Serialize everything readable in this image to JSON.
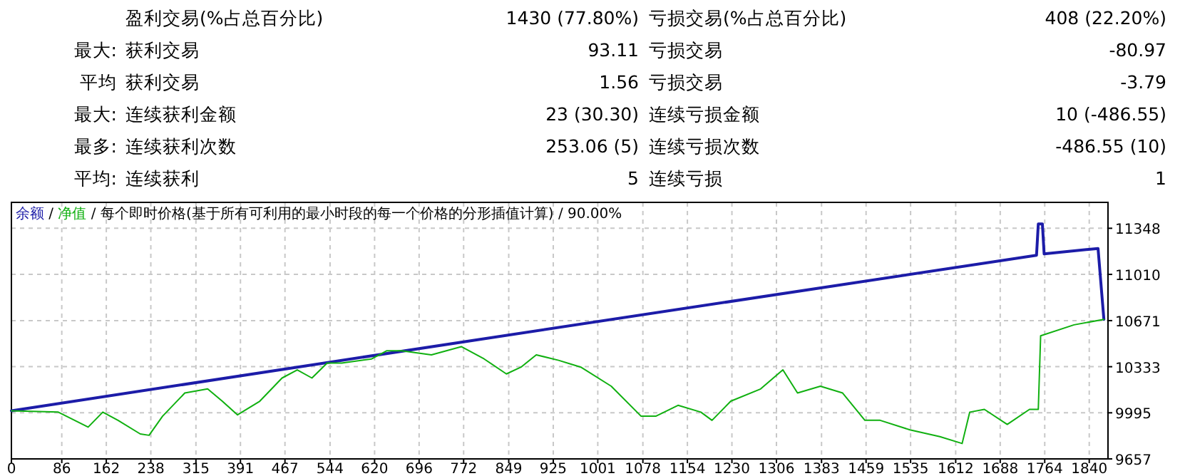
{
  "chart_data": [
    {
      "type": "other",
      "annotations": [
        "盈利交易(%占总百分比)",
        "1430 (77.80%)",
        "亏损交易(%占总百分比)",
        "408 (22.20%)",
        "最大:",
        "获利交易",
        "93.11",
        "亏损交易",
        "-80.97",
        "平均",
        "获利交易",
        "1.56",
        "亏损交易",
        "-3.79",
        "最大:",
        "连续获利金额",
        "23 (30.30)",
        "连续亏损金额",
        "10 (-486.55)",
        "最多:",
        "连续获利次数",
        "253.06 (5)",
        "连续亏损次数",
        "-486.55 (10)",
        "平均:",
        "连续获利",
        "5",
        "连续亏损",
        "1"
      ]
    },
    {
      "type": "line",
      "legend": "top left",
      "grid": true,
      "annotations": [
        " / ",
        " / 每个即时价格(基于所有可利用的最小时段的每一个价格的分形插值计算) / 90.00%"
      ],
      "xlim": [
        0,
        1872
      ],
      "xticks": [
        0,
        86,
        162,
        238,
        315,
        391,
        467,
        544,
        620,
        696,
        772,
        849,
        925,
        1001,
        1078,
        1154,
        1230,
        1306,
        1383,
        1459,
        1535,
        1612,
        1688,
        1764,
        1840
      ],
      "ylim": [
        9657,
        11538
      ],
      "yticks": [
        9657,
        9995,
        10333,
        10671,
        11010,
        11348
      ],
      "series": [
        {
          "name": "余额",
          "color": "#1c1ca8",
          "x": [
            0,
            794,
            1750,
            1753,
            1760,
            1763,
            1855,
            1865
          ],
          "values": [
            10010,
            10530,
            11150,
            11380,
            11380,
            11160,
            11200,
            10680
          ]
        },
        {
          "name": "净值",
          "color": "#10b010",
          "x": [
            0,
            80,
            131,
            156,
            182,
            220,
            235,
            258,
            296,
            335,
            360,
            386,
            424,
            462,
            488,
            513,
            539,
            564,
            615,
            641,
            666,
            717,
            768,
            807,
            845,
            870,
            896,
            934,
            972,
            1024,
            1075,
            1100,
            1138,
            1177,
            1196,
            1228,
            1279,
            1317,
            1342,
            1381,
            1419,
            1457,
            1483,
            1534,
            1585,
            1623,
            1636,
            1661,
            1700,
            1738,
            1753,
            1757,
            1814,
            1865
          ],
          "values": [
            10010,
            10000,
            9890,
            10000,
            9940,
            9840,
            9830,
            9970,
            10140,
            10170,
            10080,
            9980,
            10080,
            10250,
            10310,
            10250,
            10360,
            10360,
            10390,
            10450,
            10450,
            10420,
            10480,
            10390,
            10280,
            10330,
            10420,
            10380,
            10330,
            10190,
            9970,
            9970,
            10050,
            10000,
            9940,
            10080,
            10170,
            10310,
            10140,
            10190,
            10140,
            9940,
            9940,
            9870,
            9820,
            9770,
            10000,
            10020,
            9910,
            10020,
            10020,
            10560,
            10640,
            10680
          ]
        }
      ]
    }
  ]
}
